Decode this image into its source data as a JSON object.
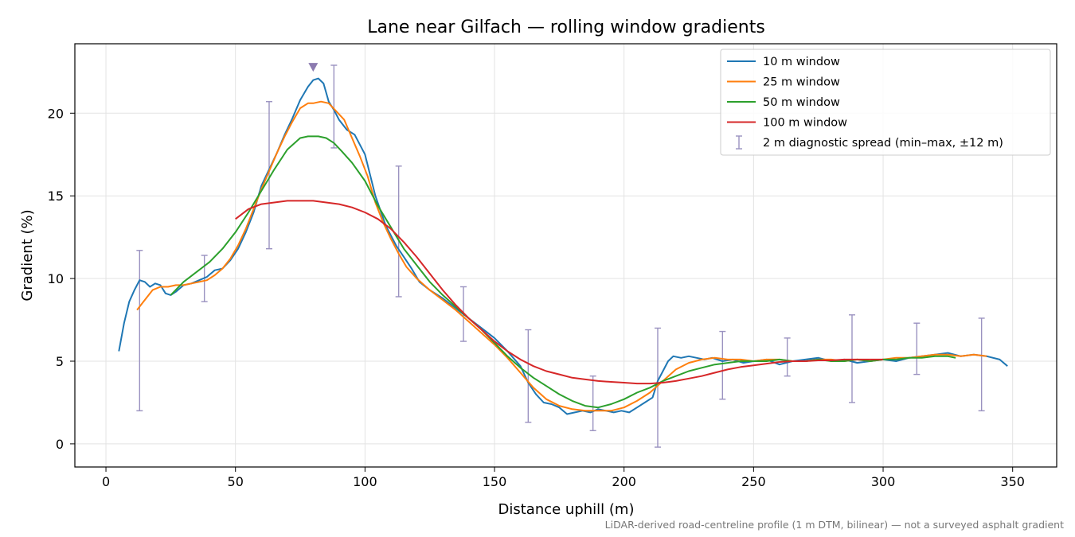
{
  "chart_data": {
    "type": "line",
    "title": "Lane near Gilfach — rolling window gradients",
    "xlabel": "Distance uphill (m)",
    "ylabel": "Gradient (%)",
    "xlim": [
      -12,
      367
    ],
    "ylim": [
      -1.4,
      24.2
    ],
    "xticks": [
      0,
      50,
      100,
      150,
      200,
      250,
      300,
      350
    ],
    "yticks": [
      0,
      5,
      10,
      15,
      20
    ],
    "grid": true,
    "legend_position": "top-right",
    "footnote": "LiDAR-derived road-centreline profile (1 m DTM, bilinear) — not a surveyed asphalt gradient",
    "peak_marker": {
      "x": 80,
      "y": 22.8,
      "color": "#8c7bb0"
    },
    "series": [
      {
        "name": "10 m window",
        "color": "#1f77b4",
        "x": [
          5,
          7,
          9,
          11,
          13,
          15,
          17,
          19,
          21,
          23,
          25,
          27,
          30,
          33,
          36,
          39,
          42,
          45,
          48,
          51,
          54,
          57,
          60,
          63,
          66,
          69,
          72,
          75,
          78,
          80,
          82,
          84,
          86,
          88,
          90,
          93,
          96,
          100,
          104,
          108,
          112,
          115,
          118,
          121,
          125,
          130,
          135,
          140,
          145,
          150,
          155,
          160,
          163,
          166,
          169,
          172,
          175,
          178,
          181,
          184,
          187,
          190,
          193,
          196,
          199,
          202,
          205,
          208,
          211,
          213,
          215,
          217,
          219,
          222,
          225,
          228,
          231,
          234,
          238,
          242,
          246,
          250,
          255,
          260,
          265,
          270,
          275,
          280,
          285,
          290,
          295,
          300,
          305,
          310,
          315,
          320,
          325,
          330,
          335,
          340,
          345,
          348
        ],
        "y": [
          5.6,
          7.3,
          8.6,
          9.3,
          9.9,
          9.8,
          9.5,
          9.7,
          9.6,
          9.1,
          9.0,
          9.2,
          9.6,
          9.7,
          9.9,
          10.1,
          10.5,
          10.6,
          11.1,
          11.8,
          12.8,
          14.0,
          15.6,
          16.6,
          17.6,
          18.7,
          19.7,
          20.8,
          21.6,
          22.0,
          22.1,
          21.8,
          20.7,
          20.2,
          19.6,
          19.0,
          18.7,
          17.5,
          15.0,
          13.2,
          12.0,
          11.3,
          10.6,
          9.8,
          9.3,
          8.8,
          8.2,
          7.6,
          7.0,
          6.4,
          5.6,
          4.7,
          3.7,
          3.0,
          2.5,
          2.4,
          2.2,
          1.8,
          1.9,
          2.0,
          1.9,
          2.1,
          2.0,
          1.9,
          2.0,
          1.9,
          2.2,
          2.5,
          2.8,
          3.8,
          4.4,
          5.0,
          5.3,
          5.2,
          5.3,
          5.2,
          5.1,
          5.2,
          5.0,
          5.1,
          4.9,
          5.0,
          5.1,
          4.8,
          5.0,
          5.1,
          5.2,
          5.0,
          5.1,
          4.9,
          5.0,
          5.1,
          5.0,
          5.2,
          5.3,
          5.4,
          5.5,
          5.3,
          5.4,
          5.3,
          5.1,
          4.7
        ]
      },
      {
        "name": "25 m window",
        "color": "#ff7f0e",
        "x": [
          12,
          15,
          18,
          21,
          24,
          27,
          30,
          33,
          36,
          39,
          42,
          45,
          48,
          51,
          54,
          57,
          60,
          63,
          66,
          69,
          72,
          75,
          78,
          80,
          83,
          86,
          89,
          92,
          95,
          98,
          101,
          104,
          107,
          110,
          113,
          116,
          120,
          125,
          130,
          135,
          140,
          145,
          150,
          155,
          160,
          165,
          170,
          175,
          180,
          185,
          190,
          195,
          200,
          205,
          210,
          215,
          220,
          225,
          230,
          235,
          240,
          245,
          250,
          255,
          260,
          265,
          270,
          275,
          280,
          285,
          290,
          295,
          300,
          305,
          310,
          315,
          320,
          325,
          330,
          335,
          340
        ],
        "y": [
          8.1,
          8.7,
          9.3,
          9.5,
          9.5,
          9.6,
          9.6,
          9.7,
          9.8,
          9.9,
          10.2,
          10.6,
          11.2,
          12.0,
          13.0,
          14.2,
          15.4,
          16.5,
          17.6,
          18.6,
          19.5,
          20.3,
          20.6,
          20.6,
          20.7,
          20.6,
          20.1,
          19.6,
          18.5,
          17.4,
          16.2,
          14.6,
          13.4,
          12.4,
          11.5,
          10.7,
          10.0,
          9.3,
          8.7,
          8.1,
          7.4,
          6.7,
          6.0,
          5.2,
          4.3,
          3.4,
          2.7,
          2.3,
          2.1,
          2.0,
          2.0,
          2.0,
          2.2,
          2.6,
          3.1,
          3.8,
          4.5,
          4.9,
          5.1,
          5.2,
          5.1,
          5.1,
          5.0,
          5.1,
          5.1,
          5.0,
          5.0,
          5.1,
          5.1,
          5.0,
          5.1,
          5.0,
          5.1,
          5.2,
          5.2,
          5.3,
          5.4,
          5.4,
          5.3,
          5.4,
          5.3
        ]
      },
      {
        "name": "50 m window",
        "color": "#2ca02c",
        "x": [
          25,
          30,
          35,
          40,
          45,
          50,
          55,
          60,
          65,
          70,
          75,
          78,
          80,
          82,
          85,
          88,
          91,
          95,
          100,
          105,
          110,
          115,
          120,
          125,
          130,
          135,
          140,
          145,
          150,
          155,
          160,
          165,
          170,
          175,
          180,
          185,
          190,
          195,
          200,
          205,
          210,
          215,
          220,
          225,
          230,
          235,
          240,
          245,
          250,
          255,
          260,
          265,
          270,
          275,
          280,
          285,
          290,
          295,
          300,
          305,
          310,
          315,
          320,
          325,
          328
        ],
        "y": [
          9.0,
          9.8,
          10.4,
          11.0,
          11.8,
          12.8,
          14.0,
          15.3,
          16.6,
          17.8,
          18.5,
          18.6,
          18.6,
          18.6,
          18.5,
          18.2,
          17.7,
          17.0,
          15.9,
          14.4,
          13.1,
          11.8,
          10.8,
          9.8,
          9.0,
          8.3,
          7.6,
          6.9,
          6.1,
          5.3,
          4.6,
          4.0,
          3.5,
          3.0,
          2.6,
          2.3,
          2.2,
          2.4,
          2.7,
          3.1,
          3.4,
          3.8,
          4.1,
          4.4,
          4.6,
          4.8,
          4.9,
          5.0,
          5.0,
          5.0,
          5.1,
          5.0,
          5.0,
          5.1,
          5.0,
          5.0,
          5.1,
          5.0,
          5.1,
          5.1,
          5.2,
          5.2,
          5.3,
          5.3,
          5.2
        ]
      },
      {
        "name": "100 m window",
        "color": "#d62728",
        "x": [
          50,
          55,
          60,
          65,
          70,
          75,
          80,
          85,
          90,
          95,
          100,
          105,
          110,
          115,
          120,
          125,
          130,
          135,
          140,
          145,
          150,
          155,
          160,
          165,
          170,
          175,
          180,
          185,
          190,
          195,
          200,
          205,
          210,
          215,
          220,
          225,
          230,
          235,
          240,
          245,
          250,
          255,
          260,
          265,
          270,
          275,
          280,
          285,
          290,
          295,
          300
        ],
        "y": [
          13.6,
          14.2,
          14.5,
          14.6,
          14.7,
          14.7,
          14.7,
          14.6,
          14.5,
          14.3,
          14.0,
          13.6,
          13.0,
          12.2,
          11.3,
          10.3,
          9.3,
          8.4,
          7.6,
          6.9,
          6.2,
          5.6,
          5.1,
          4.7,
          4.4,
          4.2,
          4.0,
          3.9,
          3.8,
          3.75,
          3.7,
          3.65,
          3.65,
          3.7,
          3.8,
          3.95,
          4.1,
          4.3,
          4.5,
          4.65,
          4.75,
          4.85,
          4.95,
          5.0,
          5.0,
          5.05,
          5.05,
          5.1,
          5.1,
          5.1,
          5.1
        ]
      }
    ],
    "error_bars": {
      "name": "2 m diagnostic spread (min–max, ±12 m)",
      "color": "#9a92c0",
      "points": [
        {
          "x": 13,
          "low": 2.0,
          "high": 11.7
        },
        {
          "x": 38,
          "low": 8.6,
          "high": 11.4
        },
        {
          "x": 63,
          "low": 11.8,
          "high": 20.7
        },
        {
          "x": 88,
          "low": 17.9,
          "high": 22.9
        },
        {
          "x": 113,
          "low": 8.9,
          "high": 16.8
        },
        {
          "x": 138,
          "low": 6.2,
          "high": 9.5
        },
        {
          "x": 163,
          "low": 1.3,
          "high": 6.9
        },
        {
          "x": 188,
          "low": 0.8,
          "high": 4.1
        },
        {
          "x": 213,
          "low": -0.2,
          "high": 7.0
        },
        {
          "x": 238,
          "low": 2.7,
          "high": 6.8
        },
        {
          "x": 263,
          "low": 4.1,
          "high": 6.4
        },
        {
          "x": 288,
          "low": 2.5,
          "high": 7.8
        },
        {
          "x": 313,
          "low": 4.2,
          "high": 7.3
        },
        {
          "x": 338,
          "low": 2.0,
          "high": 7.6
        }
      ]
    }
  }
}
